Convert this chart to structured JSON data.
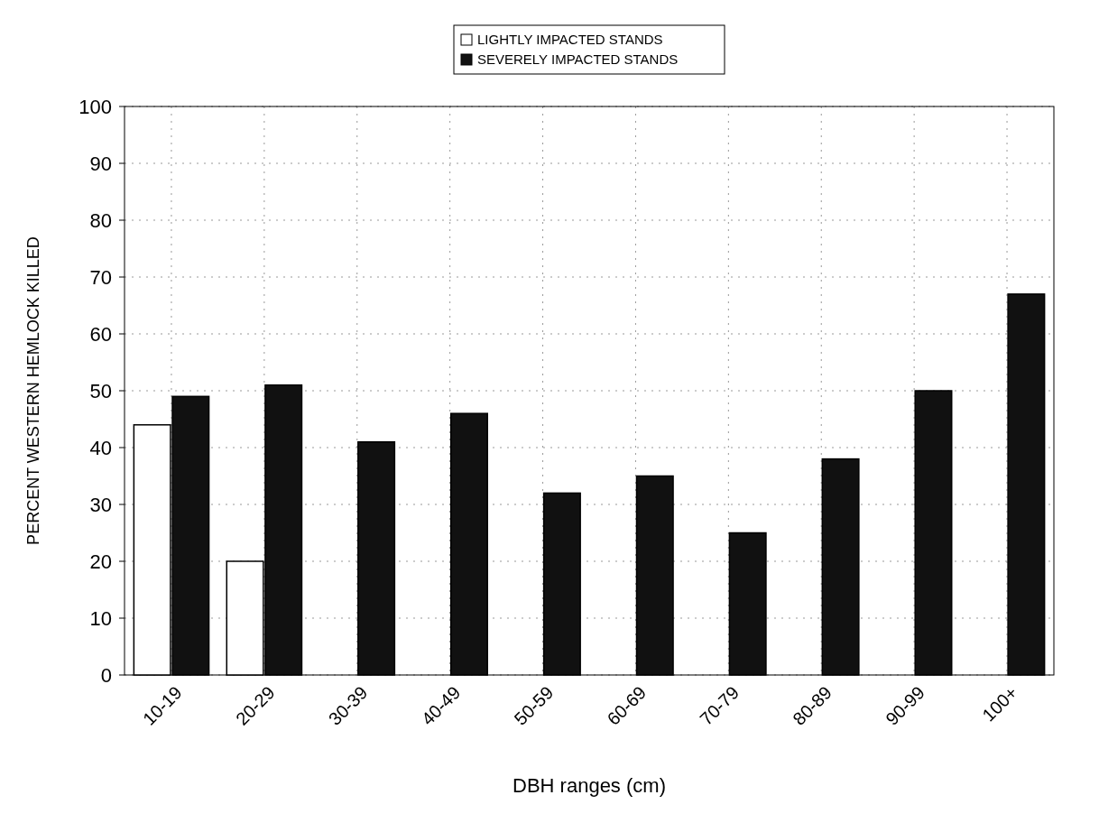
{
  "chart_data": {
    "type": "bar",
    "xlabel": "DBH ranges (cm)",
    "ylabel": "PERCENT WESTERN HEMLOCK KILLED",
    "categories": [
      "10-19",
      "20-29",
      "30-39",
      "40-49",
      "50-59",
      "60-69",
      "70-79",
      "80-89",
      "90-99",
      "100+"
    ],
    "series": [
      {
        "name": "LIGHTLY IMPACTED STANDS",
        "color": "#ffffff",
        "values": [
          44,
          20,
          null,
          null,
          null,
          null,
          null,
          null,
          null,
          null
        ]
      },
      {
        "name": "SEVERELY IMPACTED STANDS",
        "color": "#111111",
        "values": [
          49,
          51,
          41,
          46,
          32,
          35,
          25,
          38,
          50,
          67
        ]
      }
    ],
    "ylim": [
      0,
      100
    ],
    "yticks": [
      0,
      10,
      20,
      30,
      40,
      50,
      60,
      70,
      80,
      90,
      100
    ],
    "grid": true,
    "legend": "top"
  }
}
